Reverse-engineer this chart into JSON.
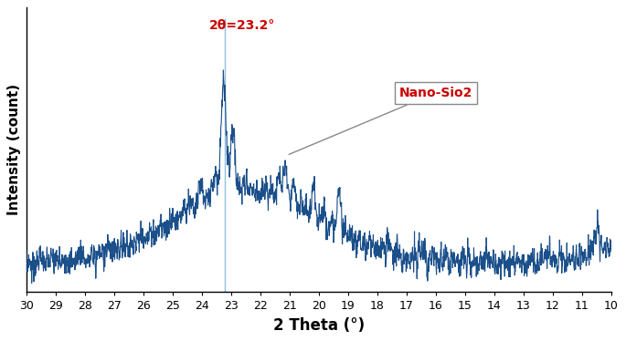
{
  "xlabel": "2 Theta (°)",
  "ylabel": "Intensity (count)",
  "line_color": "#1a4f8a",
  "line_width": 0.8,
  "peak_2theta": 23.2,
  "annotation_label": "2θ=23.2°",
  "annotation_color": "#cc0000",
  "box_label": "Nano-Sio2",
  "box_label_color": "#cc0000",
  "vline_color": "#90c0e0",
  "background_color": "#ffffff",
  "seed": 7
}
